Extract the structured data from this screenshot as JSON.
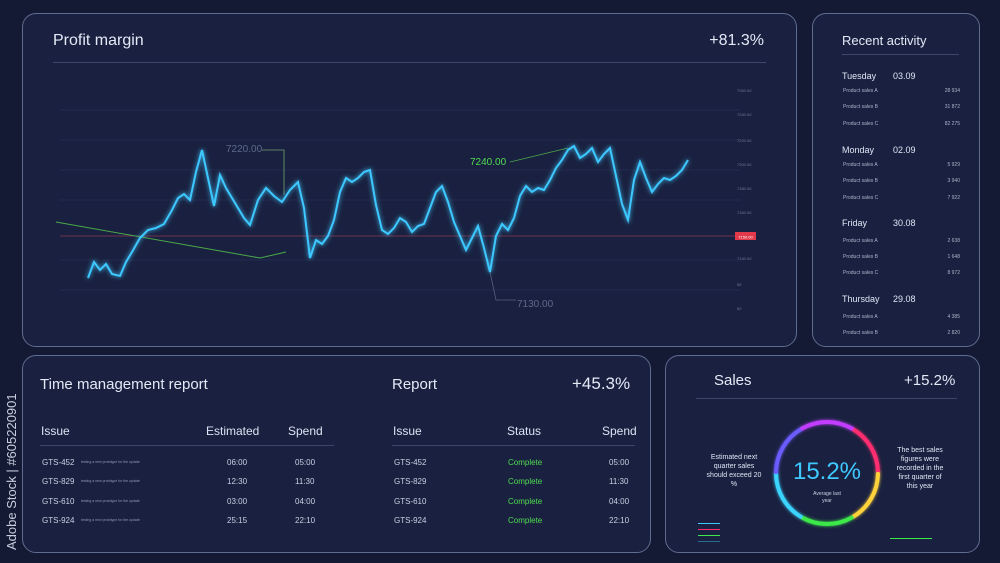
{
  "profit": {
    "title": "Profit margin",
    "value": "+81.3%",
    "annotations": [
      "7220.00",
      "7240.00",
      "7130.00"
    ],
    "price_tag": "7150.00",
    "axis_ticks": [
      "7260.00",
      "7240.00",
      "7220.00",
      "7200.00",
      "7180.00",
      "7160.00",
      "7140.00",
      "65",
      "60"
    ],
    "series": [
      [
        88,
        278
      ],
      [
        94,
        262
      ],
      [
        100,
        270
      ],
      [
        106,
        264
      ],
      [
        112,
        274
      ],
      [
        120,
        276
      ],
      [
        126,
        262
      ],
      [
        132,
        252
      ],
      [
        140,
        238
      ],
      [
        148,
        230
      ],
      [
        156,
        228
      ],
      [
        164,
        224
      ],
      [
        172,
        210
      ],
      [
        178,
        198
      ],
      [
        184,
        194
      ],
      [
        190,
        200
      ],
      [
        196,
        172
      ],
      [
        202,
        150
      ],
      [
        208,
        178
      ],
      [
        214,
        206
      ],
      [
        220,
        175
      ],
      [
        226,
        188
      ],
      [
        232,
        198
      ],
      [
        238,
        208
      ],
      [
        244,
        218
      ],
      [
        250,
        225
      ],
      [
        258,
        200
      ],
      [
        266,
        188
      ],
      [
        274,
        196
      ],
      [
        282,
        202
      ],
      [
        290,
        190
      ],
      [
        298,
        182
      ],
      [
        304,
        208
      ],
      [
        310,
        258
      ],
      [
        316,
        240
      ],
      [
        322,
        244
      ],
      [
        328,
        236
      ],
      [
        334,
        220
      ],
      [
        340,
        192
      ],
      [
        346,
        178
      ],
      [
        352,
        182
      ],
      [
        358,
        178
      ],
      [
        364,
        172
      ],
      [
        370,
        170
      ],
      [
        376,
        205
      ],
      [
        382,
        230
      ],
      [
        388,
        234
      ],
      [
        394,
        228
      ],
      [
        400,
        218
      ],
      [
        406,
        222
      ],
      [
        412,
        232
      ],
      [
        418,
        226
      ],
      [
        424,
        224
      ],
      [
        430,
        208
      ],
      [
        436,
        192
      ],
      [
        442,
        186
      ],
      [
        448,
        202
      ],
      [
        454,
        222
      ],
      [
        460,
        236
      ],
      [
        466,
        250
      ],
      [
        472,
        238
      ],
      [
        478,
        226
      ],
      [
        484,
        248
      ],
      [
        490,
        272
      ],
      [
        496,
        236
      ],
      [
        502,
        224
      ],
      [
        508,
        230
      ],
      [
        514,
        218
      ],
      [
        520,
        196
      ],
      [
        526,
        186
      ],
      [
        532,
        192
      ],
      [
        538,
        188
      ],
      [
        544,
        190
      ],
      [
        550,
        180
      ],
      [
        556,
        168
      ],
      [
        562,
        160
      ],
      [
        568,
        150
      ],
      [
        574,
        146
      ],
      [
        580,
        158
      ],
      [
        586,
        154
      ],
      [
        592,
        148
      ],
      [
        598,
        162
      ],
      [
        604,
        154
      ],
      [
        610,
        148
      ],
      [
        616,
        176
      ],
      [
        622,
        204
      ],
      [
        628,
        220
      ],
      [
        634,
        180
      ],
      [
        640,
        162
      ],
      [
        646,
        178
      ],
      [
        652,
        192
      ],
      [
        658,
        184
      ],
      [
        664,
        178
      ],
      [
        670,
        180
      ],
      [
        676,
        176
      ],
      [
        682,
        170
      ],
      [
        688,
        160
      ]
    ]
  },
  "time_report": {
    "title": "Time management report",
    "headers": [
      "Issue",
      "Estimated",
      "Spend"
    ],
    "rows": [
      {
        "issue": "GTS-452",
        "desc": "testing a new prototype for the update",
        "est": "06:00",
        "spend": "05:00"
      },
      {
        "issue": "GTS-829",
        "desc": "testing a new prototype for the update",
        "est": "12:30",
        "spend": "11:30"
      },
      {
        "issue": "GTS-610",
        "desc": "testing a new prototype for the update",
        "est": "03:00",
        "spend": "04:00"
      },
      {
        "issue": "GTS-924",
        "desc": "testing a new prototype for the update",
        "est": "25:15",
        "spend": "22:10"
      }
    ]
  },
  "report": {
    "title": "Report",
    "value": "+45.3%",
    "headers": [
      "Issue",
      "Status",
      "Spend"
    ],
    "rows": [
      {
        "issue": "GTS-452",
        "status": "Complete",
        "spend": "05:00"
      },
      {
        "issue": "GTS-829",
        "status": "Complete",
        "spend": "11:30"
      },
      {
        "issue": "GTS-610",
        "status": "Complete",
        "spend": "04:00"
      },
      {
        "issue": "GTS-924",
        "status": "Complete",
        "spend": "22:10"
      }
    ]
  },
  "sales": {
    "title": "Sales",
    "value": "+15.2%",
    "center_value": "15.2%",
    "center_label": "Average last year",
    "left_note": "Estimated next quarter sales should exceed 20 %",
    "right_note": "The best sales figures were recorded in the first quarter of this year",
    "ring_colors": [
      "#ff2d6f",
      "#ffd23a",
      "#3ce84a",
      "#3ad4ff",
      "#6a5cff",
      "#c23cff"
    ]
  },
  "recent": {
    "title": "Recent activity",
    "groups": [
      {
        "day": "Tuesday",
        "date": "03.09",
        "items": [
          {
            "label": "Product sales A",
            "value": "28 934"
          },
          {
            "label": "Product sales B",
            "value": "31 872"
          },
          {
            "label": "Product sales C",
            "value": "82 275"
          }
        ]
      },
      {
        "day": "Monday",
        "date": "02.09",
        "items": [
          {
            "label": "Product sales A",
            "value": "5 929"
          },
          {
            "label": "Product sales B",
            "value": "3 940"
          },
          {
            "label": "Product sales C",
            "value": "7 922"
          }
        ]
      },
      {
        "day": "Friday",
        "date": "30.08",
        "items": [
          {
            "label": "Product sales A",
            "value": "2 638"
          },
          {
            "label": "Product sales B",
            "value": "1 648"
          },
          {
            "label": "Product sales C",
            "value": "8 972"
          }
        ]
      },
      {
        "day": "Thursday",
        "date": "29.08",
        "items": [
          {
            "label": "Product sales A",
            "value": "4 385"
          },
          {
            "label": "Product sales B",
            "value": "2 820"
          }
        ]
      }
    ]
  },
  "watermark": "Adobe Stock | #605220901"
}
